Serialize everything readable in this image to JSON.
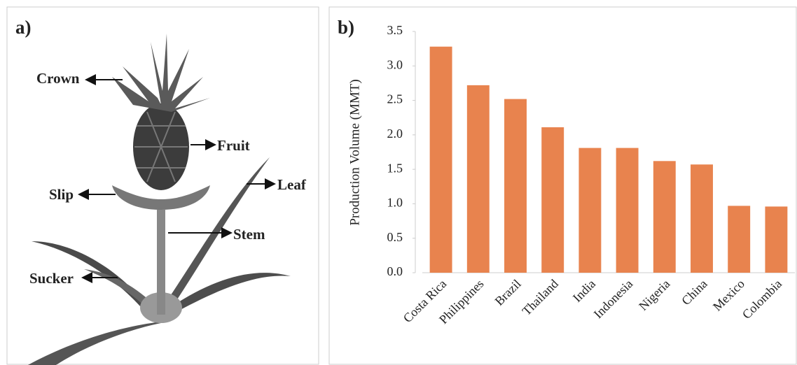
{
  "panel_a": {
    "label": "a)",
    "labels": [
      "Crown",
      "Fruit",
      "Leaf",
      "Slip",
      "Stem",
      "Sucker"
    ]
  },
  "chart_data": {
    "type": "bar",
    "panel_label": "b)",
    "y_label": "Production Volume (MMT)",
    "categories": [
      "Costa Rica",
      "Philippines",
      "Brazil",
      "Thailand",
      "India",
      "Indonesia",
      "Nigeria",
      "China",
      "Mexico",
      "Colombia"
    ],
    "values": [
      3.28,
      2.72,
      2.52,
      2.11,
      1.81,
      1.81,
      1.62,
      1.57,
      0.97,
      0.96
    ],
    "color": "#e8834e",
    "ylim": [
      0,
      3.5
    ],
    "yticks": [
      {
        "value": 0,
        "label": "0.0"
      },
      0.5,
      {
        "value": 1,
        "label": "1.0"
      },
      1.5,
      {
        "value": 2,
        "label": "2.0"
      },
      2.5,
      {
        "value": 3,
        "label": "3.0"
      },
      3.5
    ],
    "grid": false
  }
}
